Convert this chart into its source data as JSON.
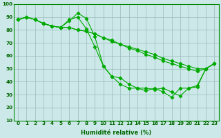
{
  "xlabel": "Humidité relative (%)",
  "background_color": "#cce8e8",
  "grid_color": "#99bbbb",
  "line_color": "#00aa00",
  "xlim_min": -0.5,
  "xlim_max": 23.5,
  "ylim_min": 10,
  "ylim_max": 100,
  "yticks": [
    10,
    20,
    30,
    40,
    50,
    60,
    70,
    80,
    90,
    100
  ],
  "xticks": [
    0,
    1,
    2,
    3,
    4,
    5,
    6,
    7,
    8,
    9,
    10,
    11,
    12,
    13,
    14,
    15,
    16,
    17,
    18,
    19,
    20,
    21,
    22,
    23
  ],
  "series": [
    [
      88,
      90,
      88,
      85,
      83,
      82,
      87,
      93,
      89,
      75,
      52,
      44,
      43,
      38,
      35,
      35,
      34,
      35,
      32,
      29,
      35,
      36,
      50,
      54
    ],
    [
      88,
      90,
      88,
      85,
      83,
      82,
      88,
      90,
      81,
      67,
      52,
      44,
      38,
      35,
      35,
      33,
      35,
      32,
      28,
      35,
      35,
      37,
      50,
      54
    ],
    [
      88,
      90,
      88,
      85,
      83,
      82,
      82,
      80,
      79,
      77,
      74,
      72,
      69,
      67,
      65,
      63,
      61,
      58,
      56,
      54,
      52,
      50,
      50,
      54
    ],
    [
      88,
      90,
      88,
      85,
      83,
      82,
      82,
      80,
      79,
      77,
      74,
      71,
      69,
      66,
      64,
      61,
      59,
      56,
      54,
      52,
      50,
      48,
      50,
      54
    ]
  ],
  "marker_size": 2.2,
  "line_width": 0.8,
  "xlabel_fontsize": 6.0,
  "tick_fontsize": 5.2,
  "spine_color": "#008800"
}
